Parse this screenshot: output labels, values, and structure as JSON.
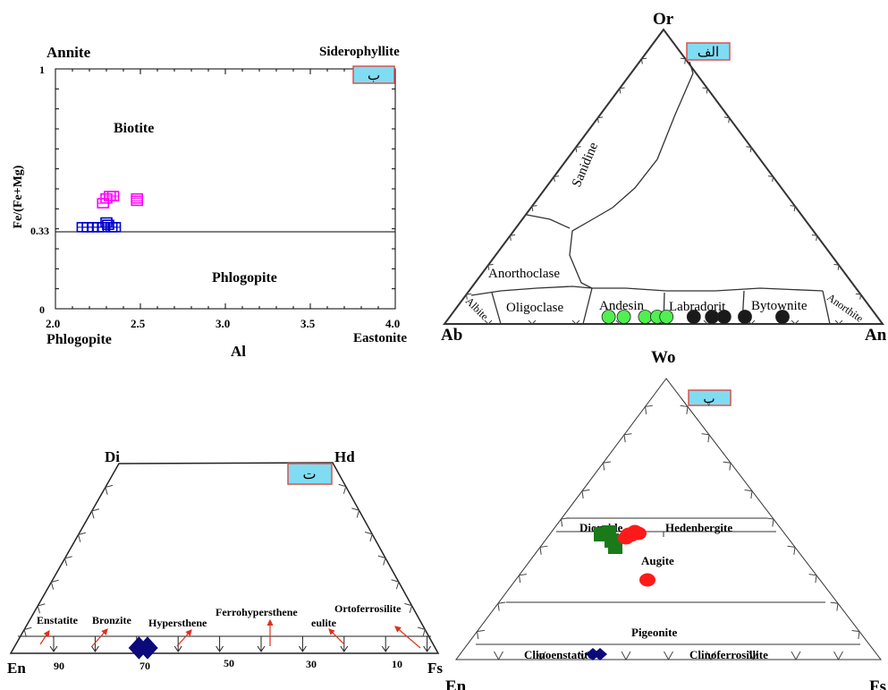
{
  "colors": {
    "tag_fill": "#7fdcf2",
    "tag_border": "#d9534f",
    "magenta": "#ff00ff",
    "blue": "#0000cc",
    "green_light": "#4ff04f",
    "black": "#1a1a1a",
    "dark_green": "#1a7a1a",
    "red": "#ff1a1a",
    "navy": "#0a0a7a",
    "arrow_red": "#e0301e"
  },
  "chart_data": [
    {
      "type": "scatter",
      "panel_tag": "ب",
      "xlabel": "Al",
      "ylabel": "Fe/(Fe+Mg)",
      "xlim": [
        2.0,
        4.0
      ],
      "ylim": [
        0,
        1
      ],
      "x_ticks": [
        "2.0",
        "2.5",
        "3.0",
        "3.5",
        "4.0"
      ],
      "y_ticks": [
        "0",
        "0.33",
        "1"
      ],
      "boundary_y": 0.33,
      "corner_labels": {
        "top_left": "Annite",
        "top_right": "Siderophyllite",
        "bottom_left": "Phlogopite",
        "bottom_right": "Eastonite"
      },
      "fields": {
        "upper": "Biotite",
        "lower": "Phlogopite"
      },
      "series": [
        {
          "marker": "square-open",
          "color": "magenta",
          "points": [
            [
              2.28,
              0.44
            ],
            [
              2.3,
              0.46
            ],
            [
              2.32,
              0.47
            ],
            [
              2.34,
              0.47
            ],
            [
              2.48,
              0.46
            ],
            [
              2.48,
              0.45
            ]
          ]
        },
        {
          "marker": "square-open",
          "color": "blue",
          "points": [
            [
              2.16,
              0.34
            ],
            [
              2.19,
              0.34
            ],
            [
              2.22,
              0.34
            ],
            [
              2.25,
              0.34
            ],
            [
              2.28,
              0.34
            ],
            [
              2.31,
              0.35
            ],
            [
              2.33,
              0.34
            ],
            [
              2.35,
              0.34
            ],
            [
              2.3,
              0.36
            ]
          ]
        }
      ]
    },
    {
      "type": "scatter",
      "panel_tag": "الف",
      "ternary": true,
      "vertices": {
        "top": "Or",
        "left": "Ab",
        "right": "An"
      },
      "fields": [
        "Sanidine",
        "Anorthoclase",
        "Albite",
        "Oligoclase",
        "Andesin",
        "Labradorit",
        "Bytownite",
        "Anorthite"
      ],
      "series": [
        {
          "color": "green_light",
          "an_fraction": [
            0.54,
            0.59,
            0.66,
            0.7,
            0.73
          ]
        },
        {
          "color": "black",
          "an_fraction": [
            0.82,
            0.88,
            0.92,
            1.46,
            1.58
          ]
        }
      ]
    },
    {
      "type": "scatter",
      "panel_tag": "ت",
      "quadrilateral": true,
      "vertices": {
        "top_left": "Di",
        "top_right": "Hd",
        "bottom_left": "En",
        "bottom_right": "Fs"
      },
      "x_ticks": [
        "90",
        "70",
        "50",
        "30",
        "10"
      ],
      "fields": [
        "Enstatite",
        "Bronzite",
        "Hypersthene",
        "Ferrohypersthene",
        "eulite",
        "Ortoferrosilite"
      ],
      "series": [
        {
          "marker": "diamond",
          "color": "navy",
          "fs": [
            30,
            32
          ]
        }
      ]
    },
    {
      "type": "scatter",
      "panel_tag": "پ",
      "ternary": true,
      "vertices": {
        "top": "Wo",
        "left": "En",
        "right": "Fs"
      },
      "fields": [
        "Diopside",
        "Hedenbergite",
        "Augite",
        "Pigeonite",
        "Clinoenstatite",
        "Clinoferrosillite"
      ],
      "series": [
        {
          "marker": "square",
          "color": "dark_green",
          "count": 4
        },
        {
          "marker": "circle",
          "color": "red",
          "count": 6
        },
        {
          "marker": "diamond",
          "color": "navy",
          "count": 2
        }
      ]
    }
  ],
  "labels": {
    "b": {
      "annite": "Annite",
      "siderophyllite": "Siderophyllite",
      "phlogopite_bl": "Phlogopite",
      "eastonite": "Eastonite",
      "biotite": "Biotite",
      "phlogopite_field": "Phlogopite",
      "ylabel": "Fe/(Fe+Mg)",
      "xlabel": "Al",
      "y1": "1",
      "y033": "0.33",
      "y0": "0",
      "x20": "2.0",
      "x25": "2.5",
      "x30": "3.0",
      "x35": "3.5",
      "x40": "4.0",
      "tag": "ب"
    },
    "alef": {
      "or": "Or",
      "ab": "Ab",
      "an": "An",
      "tag": "الف",
      "sanidine": "Sanidine",
      "anorthoclase": "Anorthoclase",
      "albite": "Albite",
      "oligoclase": "Oligoclase",
      "andesin": "Andesin",
      "labradorit": "Labradorit",
      "bytownite": "Bytownite",
      "anorthite": "Anorthite"
    },
    "te": {
      "di": "Di",
      "hd": "Hd",
      "en": "En",
      "fs": "Fs",
      "tag": "ت",
      "enstatite": "Enstatite",
      "bronzite": "Bronzite",
      "hypersthene": "Hypersthene",
      "ferrohypersthene": "Ferrohypersthene",
      "eulite": "eulite",
      "ortoferrosilite": "Ortoferrosilite",
      "t90": "90",
      "t70": "70",
      "t50": "50",
      "t30": "30",
      "t10": "10"
    },
    "pe": {
      "wo": "Wo",
      "en": "En",
      "fs": "Fs",
      "tag": "پ",
      "diopside": "Diopside",
      "hedenbergite": "Hedenbergite",
      "augite": "Augite",
      "pigeonite": "Pigeonite",
      "clinoenstatite": "Clinoenstatite",
      "clinoferrosillite": "Clinoferrosillite"
    }
  }
}
